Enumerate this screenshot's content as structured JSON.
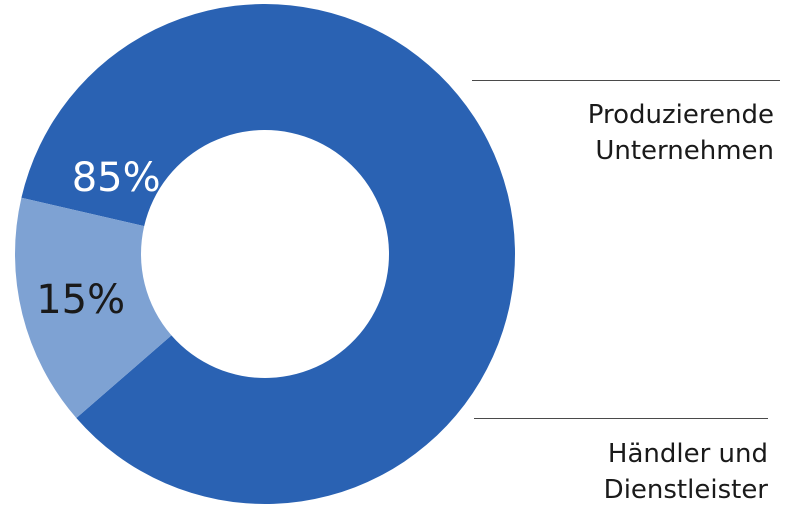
{
  "chart_data": {
    "type": "pie",
    "donut": true,
    "slices": [
      {
        "label_lines": [
          "Produzierende",
          "Unternehmen"
        ],
        "value": 85,
        "value_label": "85%",
        "color": "#2a62b3",
        "label_color": "#ffffff"
      },
      {
        "label_lines": [
          "Händler und",
          "Dienstleister"
        ],
        "value": 15,
        "value_label": "15%",
        "color": "#7ea2d3",
        "label_color": "#1a1a1a"
      }
    ],
    "legend_position": "right"
  }
}
